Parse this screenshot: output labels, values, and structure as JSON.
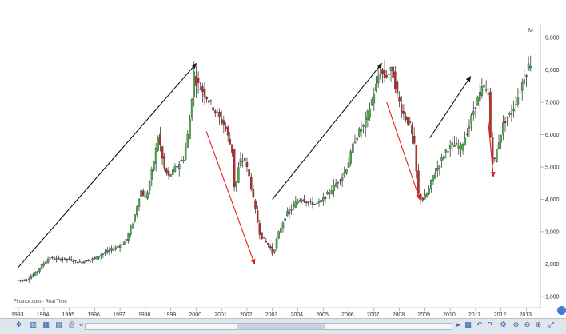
{
  "source": "Finance.com - Real Time",
  "chart_data": {
    "type": "candlestick",
    "title": "",
    "y_unit": "M",
    "x_labels": [
      "1993",
      "1994",
      "1995",
      "1996",
      "1997",
      "1998",
      "1999",
      "2000",
      "2001",
      "2002",
      "2003",
      "2004",
      "2005",
      "2006",
      "2007",
      "2008",
      "2009",
      "2010",
      "2011",
      "2012",
      "2013"
    ],
    "y_ticks": [
      "1,000",
      "2,000",
      "3,000",
      "4,000",
      "5,000",
      "6,000",
      "7,000",
      "8,000",
      "9,000"
    ],
    "ylim": [
      650,
      9450
    ],
    "xlim": [
      1993.0,
      2013.3
    ],
    "grid": false,
    "price_path": [
      [
        1993.0,
        1500
      ],
      [
        1993.4,
        1500
      ],
      [
        1993.8,
        1750
      ],
      [
        1994.0,
        1950
      ],
      [
        1994.3,
        2200
      ],
      [
        1994.6,
        2150
      ],
      [
        1995.0,
        2150
      ],
      [
        1995.5,
        2050
      ],
      [
        1996.0,
        2150
      ],
      [
        1996.5,
        2350
      ],
      [
        1997.0,
        2550
      ],
      [
        1997.3,
        2700
      ],
      [
        1997.6,
        3300
      ],
      [
        1997.9,
        4300
      ],
      [
        1998.1,
        4000
      ],
      [
        1998.4,
        5100
      ],
      [
        1998.6,
        6000
      ],
      [
        1998.8,
        5000
      ],
      [
        1999.0,
        4700
      ],
      [
        1999.3,
        5000
      ],
      [
        1999.6,
        5300
      ],
      [
        1999.8,
        6200
      ],
      [
        2000.0,
        7900
      ],
      [
        2000.1,
        7600
      ],
      [
        2000.4,
        7300
      ],
      [
        2000.7,
        6900
      ],
      [
        2001.0,
        6500
      ],
      [
        2001.2,
        6300
      ],
      [
        2001.5,
        5500
      ],
      [
        2001.6,
        4200
      ],
      [
        2001.8,
        5200
      ],
      [
        2002.0,
        5200
      ],
      [
        2002.2,
        4600
      ],
      [
        2002.4,
        3700
      ],
      [
        2002.6,
        2900
      ],
      [
        2002.8,
        2700
      ],
      [
        2003.0,
        2500
      ],
      [
        2003.1,
        2300
      ],
      [
        2003.3,
        2900
      ],
      [
        2003.6,
        3500
      ],
      [
        2003.9,
        3800
      ],
      [
        2004.2,
        4050
      ],
      [
        2004.5,
        3900
      ],
      [
        2004.8,
        3850
      ],
      [
        2005.0,
        3950
      ],
      [
        2005.3,
        4200
      ],
      [
        2005.6,
        4500
      ],
      [
        2005.9,
        4800
      ],
      [
        2006.1,
        5200
      ],
      [
        2006.3,
        5800
      ],
      [
        2006.5,
        6100
      ],
      [
        2006.7,
        6300
      ],
      [
        2006.9,
        6800
      ],
      [
        2007.2,
        7600
      ],
      [
        2007.3,
        8000
      ],
      [
        2007.5,
        7800
      ],
      [
        2007.8,
        8000
      ],
      [
        2008.0,
        7200
      ],
      [
        2008.2,
        6700
      ],
      [
        2008.5,
        6300
      ],
      [
        2008.7,
        5500
      ],
      [
        2008.8,
        4200
      ],
      [
        2009.0,
        4000
      ],
      [
        2009.2,
        4200
      ],
      [
        2009.4,
        4700
      ],
      [
        2009.6,
        5000
      ],
      [
        2009.9,
        5500
      ],
      [
        2010.2,
        5700
      ],
      [
        2010.5,
        5600
      ],
      [
        2010.8,
        6200
      ],
      [
        2011.1,
        7000
      ],
      [
        2011.4,
        7500
      ],
      [
        2011.6,
        7200
      ],
      [
        2011.7,
        5300
      ],
      [
        2011.8,
        5100
      ],
      [
        2012.0,
        5800
      ],
      [
        2012.2,
        6400
      ],
      [
        2012.5,
        6700
      ],
      [
        2012.8,
        7300
      ],
      [
        2013.0,
        7800
      ],
      [
        2013.2,
        8200
      ]
    ],
    "trend_arrows": [
      {
        "color": "#111111",
        "from": [
          1993.0,
          1900
        ],
        "to": [
          2000.0,
          8200
        ]
      },
      {
        "color": "#e02020",
        "from": [
          2000.4,
          6100
        ],
        "to": [
          2002.3,
          2000
        ]
      },
      {
        "color": "#111111",
        "from": [
          2003.0,
          4000
        ],
        "to": [
          2007.3,
          8200
        ]
      },
      {
        "color": "#e02020",
        "from": [
          2007.5,
          7000
        ],
        "to": [
          2008.8,
          4000
        ]
      },
      {
        "color": "#111111",
        "from": [
          2009.2,
          5900
        ],
        "to": [
          2010.8,
          7800
        ]
      },
      {
        "color": "#e02020",
        "from": [
          2011.5,
          6400
        ],
        "to": [
          2011.7,
          4700
        ]
      }
    ],
    "colors": {
      "up": "#4caf50",
      "down": "#c62828",
      "wick": "#222222"
    }
  }
}
